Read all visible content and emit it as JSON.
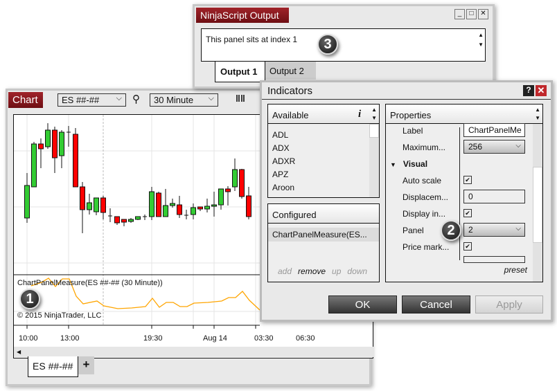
{
  "output_window": {
    "title": "NinjaScript Output",
    "text": "This panel sits at index 1",
    "tabs": [
      {
        "label": "Output 1",
        "active": true
      },
      {
        "label": "Output 2",
        "active": false
      }
    ],
    "badge": "3"
  },
  "chart_window": {
    "title": "Chart",
    "instrument": "ES ##-##",
    "interval": "30 Minute",
    "indicator_label": "ChartPanelMeasure(ES ##-## (30 Minute))",
    "copyright": "© 2015 NinjaTrader, LLC",
    "badge": "1",
    "x_labels": [
      "10:00",
      "13:00",
      "19:30",
      "Aug 14",
      "03:30",
      "06:30"
    ],
    "tabs": [
      "ES ##-##"
    ],
    "add_tab": "+",
    "colors": {
      "up": "#33cc33",
      "down": "#ff0000",
      "indicator": "#ffa500"
    }
  },
  "indicators_dialog": {
    "title": "Indicators",
    "help": "?",
    "available": {
      "header": "Available",
      "info": "i",
      "items": [
        "ADL",
        "ADX",
        "ADXR",
        "APZ",
        "Aroon"
      ]
    },
    "configured": {
      "header": "Configured",
      "items": [
        "ChartPanelMeasure(ES..."
      ],
      "actions": [
        "add",
        "remove",
        "up",
        "down"
      ]
    },
    "properties": {
      "header": "Properties",
      "label_row": {
        "name": "Label",
        "value": "ChartPanelMe"
      },
      "maximum": {
        "name": "Maximum...",
        "value": "256"
      },
      "section": "Visual",
      "auto_scale": {
        "name": "Auto scale",
        "checked": true
      },
      "displacement": {
        "name": "Displacem...",
        "value": "0"
      },
      "display_in": {
        "name": "Display in...",
        "checked": true
      },
      "panel": {
        "name": "Panel",
        "value": "2"
      },
      "price_marker": {
        "name": "Price mark...",
        "checked": true
      },
      "preset": "preset"
    },
    "badge": "2",
    "buttons": {
      "ok": "OK",
      "cancel": "Cancel",
      "apply": "Apply"
    }
  }
}
